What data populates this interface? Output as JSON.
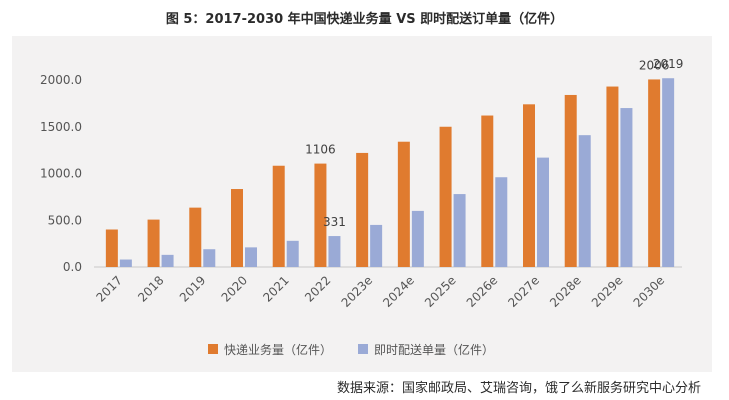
{
  "title": "图 5：2017-2030 年中国快递业务量 VS 即时配送订单量（亿件）",
  "source": "数据来源：国家邮政局、艾瑞咨询，饿了么新服务研究中心分析",
  "chart_data": {
    "type": "bar",
    "categories": [
      "2017",
      "2018",
      "2019",
      "2020",
      "2021",
      "2022",
      "2023e",
      "2024e",
      "2025e",
      "2026e",
      "2027e",
      "2028e",
      "2029e",
      "2030e"
    ],
    "series": [
      {
        "name": "快递业务量（亿件）",
        "color": "#e07b2f",
        "values": [
          401,
          507,
          635,
          834,
          1083,
          1106,
          1220,
          1340,
          1500,
          1620,
          1740,
          1840,
          1930,
          2006
        ]
      },
      {
        "name": "即时配送单量（亿件）",
        "color": "#9aaad6",
        "values": [
          80,
          130,
          190,
          210,
          280,
          331,
          450,
          600,
          780,
          960,
          1170,
          1410,
          1700,
          2019
        ]
      }
    ],
    "data_labels": [
      {
        "series": 0,
        "index": 5,
        "text": "1106"
      },
      {
        "series": 1,
        "index": 5,
        "text": "331"
      },
      {
        "series": 0,
        "index": 13,
        "text": "2006"
      },
      {
        "series": 1,
        "index": 13,
        "text": "2019"
      }
    ],
    "yticks": [
      "0.0",
      "500.0",
      "1000.0",
      "1500.0",
      "2000.0"
    ],
    "ylim": [
      0,
      2000
    ],
    "grid": false,
    "legend_position": "bottom"
  }
}
